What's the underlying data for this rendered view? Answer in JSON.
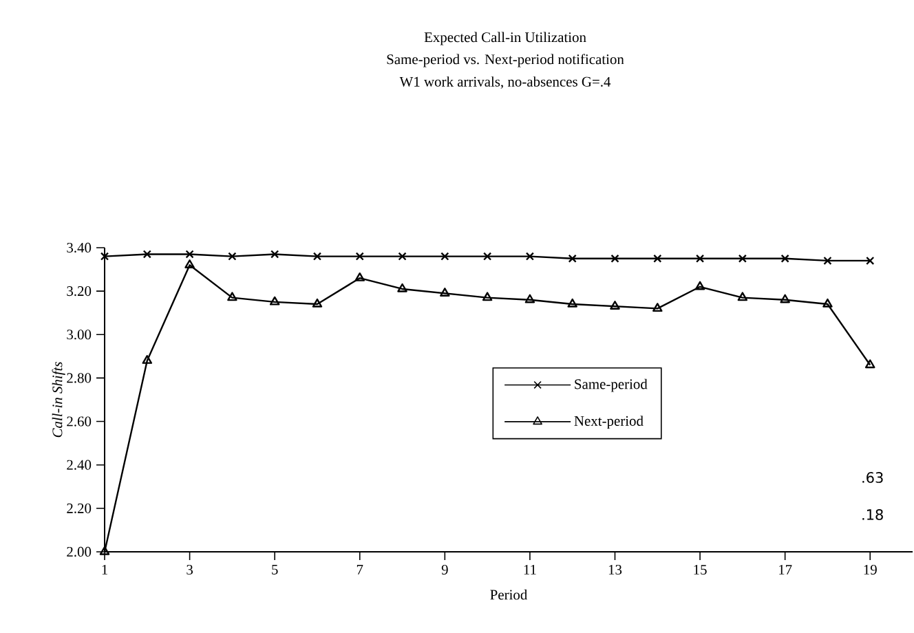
{
  "chart_data": {
    "type": "line",
    "title": "Expected Call-in Utilization",
    "subtitle": "Same-period vs. Next-period notification",
    "annotations": [
      "W1 work arrivals, no-absences G=.4",
      ".63",
      ".18"
    ],
    "xlabel": "Period",
    "ylabel": "Call-in Shifts",
    "x": [
      1,
      2,
      3,
      4,
      5,
      6,
      7,
      8,
      9,
      10,
      11,
      12,
      13,
      14,
      15,
      16,
      17,
      18,
      19
    ],
    "series": [
      {
        "name": "Same-period",
        "color": "#000000",
        "marker": "cross",
        "values": [
          3.36,
          3.37,
          3.37,
          3.36,
          3.37,
          3.36,
          3.36,
          3.36,
          3.36,
          3.36,
          3.36,
          3.35,
          3.35,
          3.35,
          3.35,
          3.35,
          3.35,
          3.34,
          3.34
        ]
      },
      {
        "name": "Next-period",
        "color": "#000000",
        "marker": "triangle",
        "values": [
          2.0,
          2.88,
          3.32,
          3.17,
          3.15,
          3.14,
          3.26,
          3.21,
          3.19,
          3.17,
          3.16,
          3.14,
          3.13,
          3.12,
          3.22,
          3.17,
          3.16,
          3.14,
          2.86
        ]
      }
    ],
    "xlim": [
      1,
      20
    ],
    "xticks": [
      1,
      3,
      5,
      7,
      9,
      11,
      13,
      15,
      17,
      19
    ],
    "ylim": [
      2.0,
      3.4
    ],
    "yticks": [
      {
        "value": 2.0,
        "label": "2.00"
      },
      {
        "value": 2.2,
        "label": "2.20"
      },
      {
        "value": 2.4,
        "label": "2.40"
      },
      {
        "value": 2.6,
        "label": "2.60"
      },
      {
        "value": 2.8,
        "label": "2.80"
      },
      {
        "value": 3.0,
        "label": "3.00"
      },
      {
        "value": 3.2,
        "label": "3.20"
      },
      {
        "value": 3.4,
        "label": "3.40"
      }
    ],
    "grid": false,
    "legend": "right",
    "line_style": "solid"
  }
}
